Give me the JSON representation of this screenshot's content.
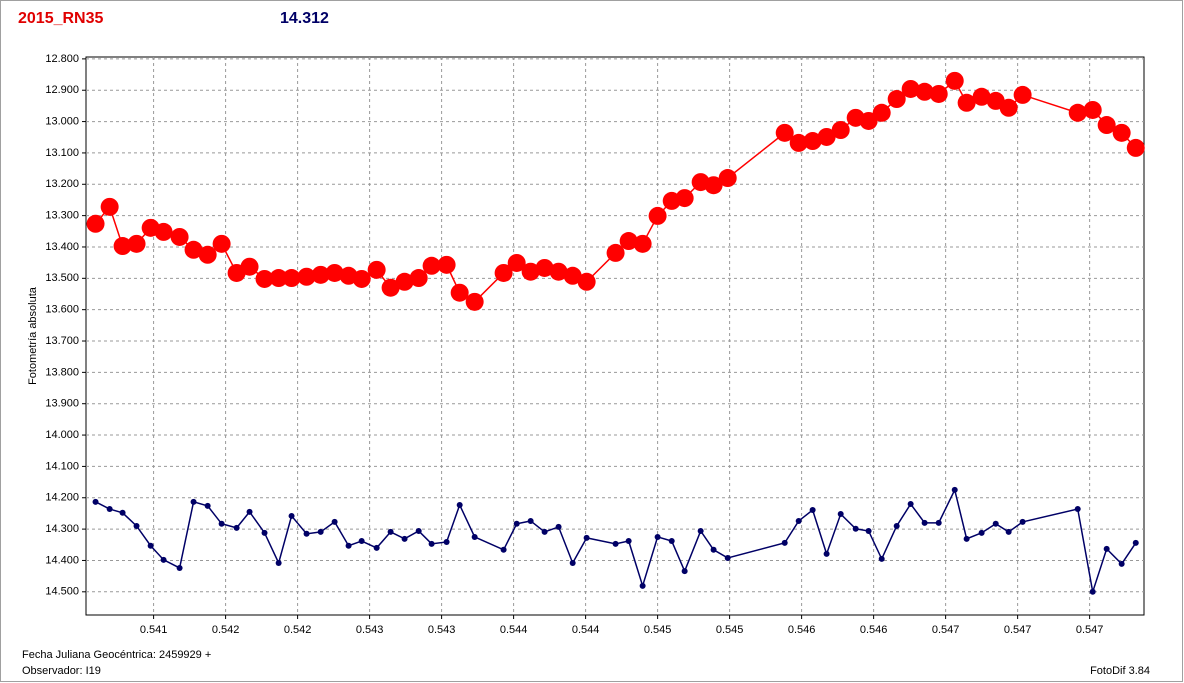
{
  "chart_data": {
    "type": "line",
    "title": "2015_RN35",
    "subtitle": "14.312",
    "ylabel": "Fotometría absoluta",
    "xlabel": "Fecha Juliana Geocéntrica: 2459929 +",
    "annotations": [
      "Observador: I19",
      "FotoDif 3.84"
    ],
    "title_color": "#e00000",
    "subtitle_color": "#000066",
    "grid": true,
    "xlim": [
      0.54066,
      0.54786
    ],
    "ylim": [
      14.574,
      12.794
    ],
    "xticks": [
      {
        "value": 0.54112,
        "label": "0.541"
      },
      {
        "value": 0.54161,
        "label": "0.542"
      },
      {
        "value": 0.5421,
        "label": "0.542"
      },
      {
        "value": 0.54259,
        "label": "0.543"
      },
      {
        "value": 0.54308,
        "label": "0.543"
      },
      {
        "value": 0.54357,
        "label": "0.544"
      },
      {
        "value": 0.54406,
        "label": "0.544"
      },
      {
        "value": 0.54455,
        "label": "0.545"
      },
      {
        "value": 0.54504,
        "label": "0.545"
      },
      {
        "value": 0.54553,
        "label": "0.546"
      },
      {
        "value": 0.54602,
        "label": "0.546"
      },
      {
        "value": 0.54651,
        "label": "0.547"
      },
      {
        "value": 0.547,
        "label": "0.547"
      },
      {
        "value": 0.54749,
        "label": "0.547"
      }
    ],
    "yticks": [
      {
        "value": 12.8,
        "label": "12.800"
      },
      {
        "value": 12.9,
        "label": "12.900"
      },
      {
        "value": 13.0,
        "label": "13.000"
      },
      {
        "value": 13.1,
        "label": "13.100"
      },
      {
        "value": 13.2,
        "label": "13.200"
      },
      {
        "value": 13.3,
        "label": "13.300"
      },
      {
        "value": 13.4,
        "label": "13.400"
      },
      {
        "value": 13.5,
        "label": "13.500"
      },
      {
        "value": 13.6,
        "label": "13.600"
      },
      {
        "value": 13.7,
        "label": "13.700"
      },
      {
        "value": 13.8,
        "label": "13.800"
      },
      {
        "value": 13.9,
        "label": "13.900"
      },
      {
        "value": 14.0,
        "label": "14.000"
      },
      {
        "value": 14.1,
        "label": "14.100"
      },
      {
        "value": 14.2,
        "label": "14.200"
      },
      {
        "value": 14.3,
        "label": "14.300"
      },
      {
        "value": 14.4,
        "label": "14.400"
      },
      {
        "value": 14.5,
        "label": "14.500"
      }
    ],
    "x": [
      0.540725,
      0.540821,
      0.540909,
      0.541004,
      0.5411,
      0.541188,
      0.541297,
      0.541392,
      0.541488,
      0.541583,
      0.541685,
      0.541773,
      0.541875,
      0.541971,
      0.542059,
      0.542161,
      0.542257,
      0.542352,
      0.542447,
      0.542536,
      0.542638,
      0.542733,
      0.542828,
      0.542924,
      0.543012,
      0.543114,
      0.543203,
      0.543305,
      0.543502,
      0.543591,
      0.543686,
      0.543781,
      0.543876,
      0.543972,
      0.544067,
      0.544264,
      0.544353,
      0.544448,
      0.54455,
      0.544646,
      0.544734,
      0.544843,
      0.544931,
      0.545027,
      0.545415,
      0.54551,
      0.545605,
      0.5457,
      0.545796,
      0.545898,
      0.545986,
      0.546075,
      0.546177,
      0.546272,
      0.546367,
      0.546463,
      0.546572,
      0.546653,
      0.546755,
      0.546851,
      0.546939,
      0.547034,
      0.547409,
      0.547511,
      0.547606,
      0.547708,
      0.547804
    ],
    "series": [
      {
        "color": "#ff0000",
        "values": [
          13.326,
          13.272,
          13.397,
          13.39,
          13.339,
          13.352,
          13.368,
          13.409,
          13.425,
          13.39,
          13.483,
          13.463,
          13.502,
          13.499,
          13.499,
          13.495,
          13.489,
          13.483,
          13.492,
          13.502,
          13.473,
          13.53,
          13.511,
          13.499,
          13.46,
          13.457,
          13.546,
          13.575,
          13.483,
          13.451,
          13.479,
          13.467,
          13.479,
          13.492,
          13.511,
          13.419,
          13.381,
          13.39,
          13.301,
          13.253,
          13.244,
          13.193,
          13.203,
          13.18,
          13.036,
          13.068,
          13.062,
          13.049,
          13.027,
          12.988,
          12.998,
          12.972,
          12.928,
          12.896,
          12.905,
          12.912,
          12.87,
          12.94,
          12.921,
          12.934,
          12.956,
          12.915,
          12.972,
          12.963,
          13.011,
          13.036,
          13.084
        ]
      },
      {
        "color": "#000066",
        "values": [
          14.213,
          14.236,
          14.248,
          14.29,
          14.353,
          14.398,
          14.424,
          14.213,
          14.226,
          14.283,
          14.296,
          14.245,
          14.312,
          14.408,
          14.258,
          14.315,
          14.309,
          14.277,
          14.353,
          14.338,
          14.36,
          14.309,
          14.331,
          14.306,
          14.347,
          14.341,
          14.223,
          14.325,
          14.366,
          14.283,
          14.274,
          14.309,
          14.293,
          14.408,
          14.328,
          14.347,
          14.338,
          14.481,
          14.325,
          14.338,
          14.434,
          14.306,
          14.366,
          14.392,
          14.344,
          14.274,
          14.239,
          14.379,
          14.252,
          14.299,
          14.306,
          14.395,
          14.29,
          14.22,
          14.28,
          14.28,
          14.175,
          14.331,
          14.312,
          14.283,
          14.309,
          14.277,
          14.236,
          14.5,
          14.363,
          14.411,
          14.344
        ]
      }
    ]
  }
}
